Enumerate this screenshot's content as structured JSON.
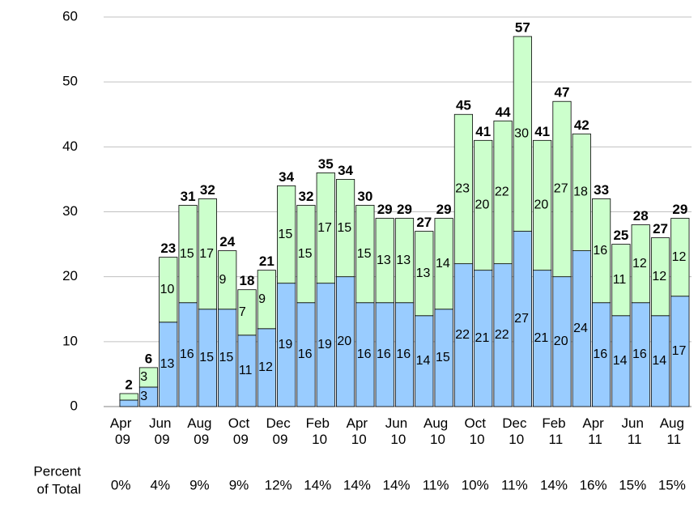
{
  "chart_data": {
    "type": "stacked-bar",
    "categories": [
      "Apr 09",
      null,
      "Jun 09",
      null,
      "Aug 09",
      null,
      "Oct 09",
      null,
      "Dec 09",
      null,
      "Feb 10",
      null,
      "Apr 10",
      null,
      "Jun 10",
      null,
      "Aug 10",
      null,
      "Oct 10",
      null,
      "Dec 10",
      null,
      "Feb 11",
      null,
      "Apr 11",
      null,
      "Jun 11",
      null,
      "Aug 11"
    ],
    "series": [
      {
        "color": "#99ccff",
        "values": [
          1,
          3,
          13,
          16,
          15,
          15,
          11,
          12,
          19,
          16,
          19,
          20,
          16,
          16,
          16,
          14,
          15,
          22,
          21,
          22,
          27,
          21,
          20,
          24,
          16,
          14,
          16,
          14,
          17
        ]
      },
      {
        "color": "#ccffcc",
        "values": [
          1,
          3,
          10,
          15,
          17,
          9,
          7,
          9,
          15,
          15,
          17,
          15,
          15,
          13,
          13,
          13,
          14,
          23,
          20,
          22,
          30,
          20,
          27,
          18,
          16,
          11,
          12,
          12,
          12
        ]
      }
    ],
    "totals": [
      2,
      6,
      23,
      31,
      32,
      24,
      18,
      21,
      34,
      32,
      35,
      34,
      30,
      29,
      29,
      27,
      29,
      45,
      41,
      44,
      57,
      41,
      47,
      42,
      33,
      25,
      28,
      27,
      29
    ],
    "ylim": [
      0,
      60
    ],
    "yticks": [
      0,
      10,
      20,
      30,
      40,
      50,
      60
    ],
    "grid": true,
    "percent_title": [
      "Percent",
      "of Total"
    ],
    "percent_labels": [
      "0%",
      "4%",
      "9%",
      "9%",
      "12%",
      "14%",
      "14%",
      "14%",
      "11%",
      "10%",
      "11%",
      "14%",
      "16%",
      "15%",
      "15%"
    ]
  }
}
